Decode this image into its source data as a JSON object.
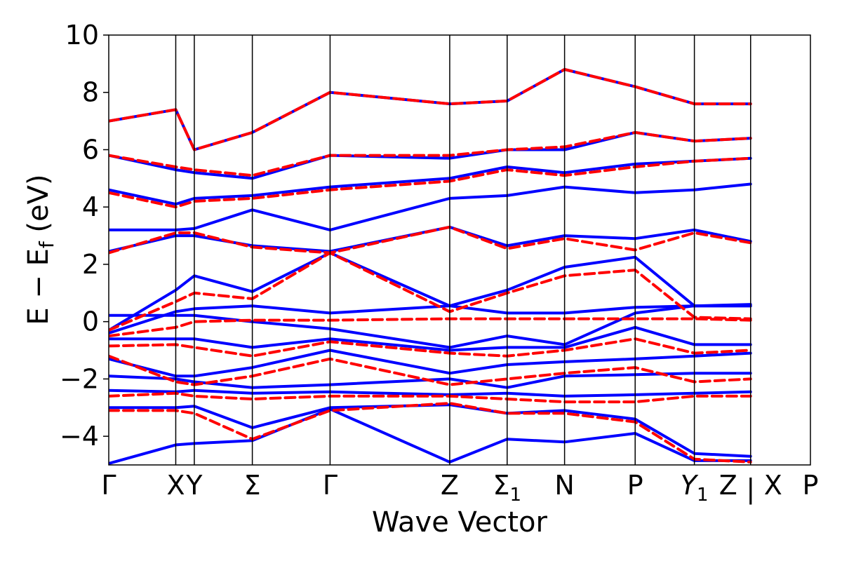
{
  "chart_data": {
    "type": "line",
    "title": "",
    "xlabel": "Wave Vector",
    "ylabel": "E − E",
    "ylabel_sub": "f",
    "ylabel_unit": " (eV)",
    "ylim": [
      -5,
      10
    ],
    "yticks": [
      -4,
      -2,
      0,
      2,
      4,
      6,
      8,
      10
    ],
    "ytick_labels": [
      "−4",
      "−2",
      "0",
      "2",
      "4",
      "6",
      "8",
      "10"
    ],
    "grid": false,
    "legend": "none",
    "kpath": [
      {
        "label": "Γ",
        "x": 0.0
      },
      {
        "label": "X",
        "x": 1.12
      },
      {
        "label": "Y",
        "x": 1.43
      },
      {
        "label": "Σ",
        "x": 2.4
      },
      {
        "label": "Γ",
        "x": 3.7
      },
      {
        "label": "Z",
        "x": 5.7
      },
      {
        "label": "Σ",
        "sub": "1",
        "x": 6.66
      },
      {
        "label": "N",
        "x": 7.62
      },
      {
        "label": "P",
        "x": 8.8
      },
      {
        "label": "Y",
        "sub": "1",
        "italic": true,
        "x": 9.79
      },
      {
        "label": "Z",
        "x": 10.73
      },
      {
        "label": "X",
        "x": 10.73,
        "break_marker": "|"
      },
      {
        "label": "P",
        "x": 11.73
      }
    ],
    "xlim": [
      0,
      11.73
    ],
    "series": [
      {
        "color": "#0000ff",
        "linestyle": "solid",
        "bands": [
          {
            "x": [
              0,
              1.12,
              1.43,
              2.4,
              3.7,
              5.7,
              6.66,
              7.62,
              8.8,
              9.79,
              10.73
            ],
            "y": [
              -4.95,
              -4.3,
              -4.25,
              -4.15,
              -3.05,
              -4.9,
              -4.1,
              -4.2,
              -3.9,
              -4.85,
              -4.85
            ]
          },
          {
            "x": [
              0,
              1.12,
              1.43,
              2.4,
              3.7,
              5.7,
              6.66,
              7.62,
              8.8,
              9.79,
              10.73
            ],
            "y": [
              -3.0,
              -3.0,
              -2.95,
              -3.7,
              -3.0,
              -2.9,
              -3.2,
              -3.1,
              -3.4,
              -4.6,
              -4.7
            ]
          },
          {
            "x": [
              0,
              1.12,
              1.43,
              2.4,
              3.7,
              5.7,
              6.66,
              7.62,
              8.8,
              9.79,
              10.73
            ],
            "y": [
              -2.4,
              -2.45,
              -2.4,
              -2.5,
              -2.45,
              -2.55,
              -2.5,
              -2.6,
              -2.55,
              -2.5,
              -2.45
            ]
          },
          {
            "x": [
              0,
              1.12,
              1.43,
              2.4,
              3.7,
              5.7,
              6.66,
              7.62,
              8.8,
              9.79,
              10.73
            ],
            "y": [
              -1.9,
              -2.0,
              -2.1,
              -2.3,
              -2.2,
              -2.0,
              -2.3,
              -1.9,
              -1.85,
              -1.8,
              -1.8
            ]
          },
          {
            "x": [
              0,
              1.12,
              1.43,
              2.4,
              3.7,
              5.7,
              6.66,
              7.62,
              8.8,
              9.79,
              10.73
            ],
            "y": [
              -1.3,
              -1.9,
              -1.9,
              -1.6,
              -1.0,
              -1.8,
              -1.5,
              -1.4,
              -1.3,
              -1.2,
              -1.1
            ]
          },
          {
            "x": [
              0,
              1.12,
              1.43,
              2.4,
              3.7,
              5.7,
              6.66,
              7.62,
              8.8,
              9.79,
              10.73
            ],
            "y": [
              -0.6,
              -0.6,
              -0.6,
              -0.9,
              -0.6,
              -1.0,
              -0.9,
              -0.9,
              -0.2,
              -0.8,
              -0.8
            ]
          },
          {
            "x": [
              0,
              1.12,
              1.43,
              2.4,
              3.7,
              5.7,
              6.66,
              7.62,
              8.8,
              9.79,
              10.73
            ],
            "y": [
              0.22,
              0.22,
              0.22,
              0.0,
              -0.25,
              -0.9,
              -0.5,
              -0.8,
              0.3,
              0.55,
              0.55
            ]
          },
          {
            "x": [
              0,
              1.12,
              1.43,
              2.4,
              3.7,
              5.7,
              6.66,
              7.62,
              8.8,
              9.79,
              10.73
            ],
            "y": [
              -0.4,
              0.35,
              0.45,
              0.55,
              0.3,
              0.55,
              0.3,
              0.3,
              0.5,
              0.55,
              0.55
            ]
          },
          {
            "x": [
              0,
              1.12,
              1.43,
              2.4,
              3.7,
              5.7,
              6.66,
              7.62,
              8.8,
              9.79,
              10.73
            ],
            "y": [
              -0.3,
              1.1,
              1.6,
              1.05,
              2.4,
              0.55,
              1.1,
              1.9,
              2.25,
              0.55,
              0.6
            ]
          },
          {
            "x": [
              0,
              1.12,
              1.43,
              2.4,
              3.7,
              5.7,
              6.66,
              7.62,
              8.8,
              9.79,
              10.73
            ],
            "y": [
              2.45,
              3.0,
              3.0,
              2.65,
              2.45,
              3.3,
              2.65,
              3.0,
              2.9,
              3.2,
              2.8
            ]
          },
          {
            "x": [
              0,
              1.12,
              1.43,
              2.4,
              3.7,
              5.7,
              6.66,
              7.62,
              8.8,
              9.79,
              10.73
            ],
            "y": [
              3.2,
              3.2,
              3.25,
              3.9,
              3.2,
              4.3,
              4.4,
              4.7,
              4.5,
              4.6,
              4.8
            ]
          },
          {
            "x": [
              0,
              1.12,
              1.43,
              2.4,
              3.7,
              5.7,
              6.66,
              7.62,
              8.8,
              9.79,
              10.73
            ],
            "y": [
              4.6,
              4.1,
              4.3,
              4.4,
              4.7,
              5.0,
              5.4,
              5.2,
              5.5,
              5.6,
              5.7
            ]
          },
          {
            "x": [
              0,
              1.12,
              1.43,
              2.4,
              3.7,
              5.7,
              6.66,
              7.62,
              8.8,
              9.79,
              10.73
            ],
            "y": [
              5.8,
              5.3,
              5.2,
              5.0,
              5.8,
              5.7,
              6.0,
              6.0,
              6.6,
              6.3,
              6.4
            ]
          },
          {
            "x": [
              0,
              1.12,
              1.43,
              2.4,
              3.7,
              5.7,
              6.66,
              7.62,
              8.8,
              9.79,
              10.73
            ],
            "y": [
              7.0,
              7.4,
              6.0,
              6.6,
              8.0,
              7.6,
              7.7,
              8.8,
              8.2,
              7.6,
              7.6
            ]
          }
        ]
      },
      {
        "color": "#ff0000",
        "linestyle": "dashed",
        "bands": [
          {
            "x": [
              0,
              1.12,
              1.43,
              2.4,
              3.7,
              5.7,
              6.66,
              7.62,
              8.8,
              9.79,
              10.73
            ],
            "y": [
              -3.1,
              -3.1,
              -3.2,
              -4.1,
              -3.1,
              -2.85,
              -3.2,
              -3.2,
              -3.5,
              -4.8,
              -4.9
            ]
          },
          {
            "x": [
              0,
              1.12,
              1.43,
              2.4,
              3.7,
              5.7,
              6.66,
              7.62,
              8.8,
              9.79,
              10.73
            ],
            "y": [
              -2.6,
              -2.5,
              -2.6,
              -2.7,
              -2.6,
              -2.6,
              -2.7,
              -2.8,
              -2.8,
              -2.6,
              -2.6
            ]
          },
          {
            "x": [
              0,
              1.12,
              1.43,
              2.4,
              3.7,
              5.7,
              6.66,
              7.62,
              8.8,
              9.79,
              10.73
            ],
            "y": [
              -1.2,
              -2.1,
              -2.2,
              -1.9,
              -1.3,
              -2.2,
              -2.0,
              -1.8,
              -1.6,
              -2.1,
              -2.0
            ]
          },
          {
            "x": [
              0,
              1.12,
              1.43,
              2.4,
              3.7,
              5.7,
              6.66,
              7.62,
              8.8,
              9.79,
              10.73
            ],
            "y": [
              -0.85,
              -0.8,
              -0.9,
              -1.2,
              -0.7,
              -1.1,
              -1.2,
              -1.0,
              -0.6,
              -1.1,
              -1.0
            ]
          },
          {
            "x": [
              0,
              1.12,
              1.43,
              2.4,
              3.7,
              5.7,
              6.66,
              7.62,
              8.8,
              9.79,
              10.73
            ],
            "y": [
              -0.5,
              -0.2,
              0.0,
              0.05,
              0.05,
              0.1,
              0.1,
              0.1,
              0.1,
              0.1,
              0.05
            ]
          },
          {
            "x": [
              0,
              1.12,
              1.43,
              2.4,
              3.7,
              5.7,
              6.66,
              7.62,
              8.8,
              9.79,
              10.73
            ],
            "y": [
              -0.3,
              0.7,
              1.0,
              0.8,
              2.4,
              0.35,
              1.0,
              1.6,
              1.8,
              0.15,
              0.1
            ]
          },
          {
            "x": [
              0,
              1.12,
              1.43,
              2.4,
              3.7,
              5.7,
              6.66,
              7.62,
              8.8,
              9.79,
              10.73
            ],
            "y": [
              2.4,
              3.1,
              3.1,
              2.6,
              2.4,
              3.3,
              2.55,
              2.9,
              2.5,
              3.1,
              2.75
            ]
          },
          {
            "x": [
              0,
              1.12,
              1.43,
              2.4,
              3.7,
              5.7,
              6.66,
              7.62,
              8.8,
              9.79,
              10.73
            ],
            "y": [
              4.5,
              4.0,
              4.2,
              4.3,
              4.6,
              4.9,
              5.3,
              5.1,
              5.4,
              5.6,
              5.7
            ]
          },
          {
            "x": [
              0,
              1.12,
              1.43,
              2.4,
              3.7,
              5.7,
              6.66,
              7.62,
              8.8,
              9.79,
              10.73
            ],
            "y": [
              5.8,
              5.4,
              5.3,
              5.1,
              5.8,
              5.8,
              6.0,
              6.1,
              6.6,
              6.3,
              6.4
            ]
          },
          {
            "x": [
              0,
              1.12,
              1.43,
              2.4,
              3.7,
              5.7,
              6.66,
              7.62,
              8.8,
              9.79,
              10.73
            ],
            "y": [
              7.0,
              7.4,
              6.0,
              6.6,
              8.0,
              7.6,
              7.7,
              8.8,
              8.2,
              7.6,
              7.6
            ]
          }
        ]
      }
    ]
  }
}
